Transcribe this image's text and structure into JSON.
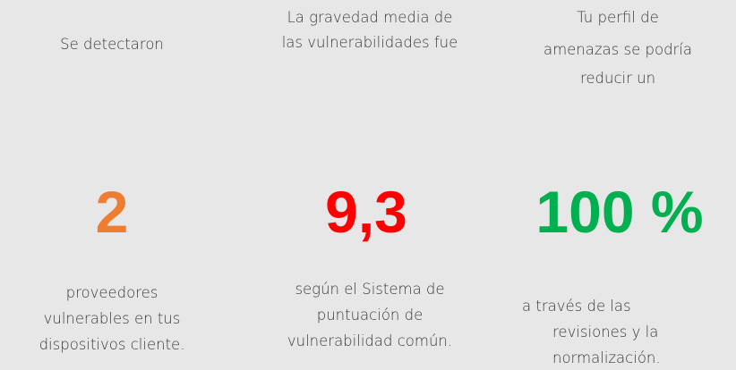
{
  "columns": [
    {
      "intro": [
        "Se detectaron"
      ],
      "value": "2",
      "description": [
        "proveedores",
        "vulnerables en tus",
        "dispositivos cliente."
      ]
    },
    {
      "intro": [
        "La gravedad media de",
        "las vulnerabilidades fue"
      ],
      "value": "9,3",
      "description": [
        "según el Sistema de",
        "puntuación de",
        "vulnerabilidad común."
      ]
    },
    {
      "intro": [
        "Tu perfil de",
        "amenazas se podría",
        "reducir un"
      ],
      "value": "100 %",
      "description": [
        "a través de las",
        "revisiones y la",
        "normalización."
      ]
    }
  ]
}
